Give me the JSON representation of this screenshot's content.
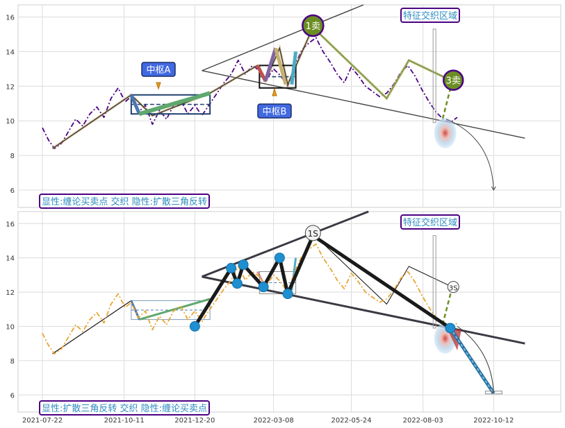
{
  "chart_data": [
    {
      "type": "line",
      "panel": "top",
      "ylim": [
        5,
        16.7
      ],
      "yticks": [
        6,
        8,
        10,
        12,
        14,
        16
      ],
      "x_range": [
        "2021-07-22",
        "2022-11-20"
      ],
      "grid": true,
      "legend": "bottom-left",
      "caption": "显性:缠论买卖点 交织 隐性:扩散三角反转",
      "region_label": "特征交织区域",
      "price_color": "#4b0082",
      "pivot_labels": [
        "中枢A",
        "中枢B"
      ],
      "signal_labels": [
        "1卖",
        "3卖"
      ],
      "bi_line": [
        [
          "2021-08-01",
          8.4
        ],
        [
          "2021-10-18",
          11.5
        ],
        [
          "2021-11-08",
          10.3
        ],
        [
          "2022-01-04",
          11.6
        ],
        [
          "2022-02-20",
          13.2
        ],
        [
          "2022-02-28",
          12.3
        ],
        [
          "2022-03-14",
          14.2
        ],
        [
          "2022-03-22",
          12.1
        ],
        [
          "2022-04-16",
          15.4
        ],
        [
          "2022-06-28",
          11.3
        ],
        [
          "2022-07-20",
          13.5
        ],
        [
          "2022-09-01",
          12.3
        ]
      ],
      "price": [
        [
          "2021-07-22",
          9.6
        ],
        [
          "2021-07-28",
          8.9
        ],
        [
          "2021-08-03",
          8.4
        ],
        [
          "2021-08-10",
          8.7
        ],
        [
          "2021-08-17",
          9.4
        ],
        [
          "2021-08-24",
          10.1
        ],
        [
          "2021-08-31",
          9.7
        ],
        [
          "2021-09-07",
          10.4
        ],
        [
          "2021-09-14",
          10.8
        ],
        [
          "2021-09-21",
          10.2
        ],
        [
          "2021-09-28",
          11.3
        ],
        [
          "2021-10-05",
          11.9
        ],
        [
          "2021-10-12",
          11.1
        ],
        [
          "2021-10-18",
          11.4
        ],
        [
          "2021-10-25",
          10.5
        ],
        [
          "2021-11-01",
          10.9
        ],
        [
          "2021-11-08",
          9.8
        ],
        [
          "2021-11-15",
          10.6
        ],
        [
          "2021-11-22",
          10.1
        ],
        [
          "2021-11-29",
          10.9
        ],
        [
          "2021-12-06",
          11.2
        ],
        [
          "2021-12-13",
          10.4
        ],
        [
          "2021-12-20",
          10.9
        ],
        [
          "2021-12-27",
          10.3
        ],
        [
          "2022-01-04",
          11.0
        ],
        [
          "2022-01-11",
          11.6
        ],
        [
          "2022-01-18",
          12.2
        ],
        [
          "2022-01-25",
          12.7
        ],
        [
          "2022-02-01",
          13.5
        ],
        [
          "2022-02-08",
          12.7
        ],
        [
          "2022-02-15",
          13.2
        ],
        [
          "2022-02-22",
          12.9
        ],
        [
          "2022-03-01",
          12.4
        ],
        [
          "2022-03-08",
          13.0
        ],
        [
          "2022-03-15",
          12.6
        ],
        [
          "2022-03-22",
          12.0
        ],
        [
          "2022-03-29",
          13.2
        ],
        [
          "2022-04-05",
          14.1
        ],
        [
          "2022-04-12",
          14.5
        ],
        [
          "2022-04-19",
          14.8
        ],
        [
          "2022-04-26",
          14.0
        ],
        [
          "2022-05-03",
          13.4
        ],
        [
          "2022-05-10",
          12.7
        ],
        [
          "2022-05-17",
          12.2
        ],
        [
          "2022-05-24",
          13.1
        ],
        [
          "2022-05-31",
          12.6
        ],
        [
          "2022-06-07",
          12.0
        ],
        [
          "2022-06-14",
          11.7
        ],
        [
          "2022-06-21",
          11.4
        ],
        [
          "2022-06-28",
          11.6
        ],
        [
          "2022-07-05",
          12.1
        ],
        [
          "2022-07-12",
          12.8
        ],
        [
          "2022-07-19",
          13.2
        ],
        [
          "2022-07-26",
          12.6
        ],
        [
          "2022-08-02",
          11.8
        ],
        [
          "2022-08-09",
          11.1
        ],
        [
          "2022-08-16",
          10.5
        ],
        [
          "2022-08-23",
          10.1
        ],
        [
          "2022-08-30",
          9.9
        ],
        [
          "2022-09-06",
          10.2
        ]
      ]
    },
    {
      "type": "line",
      "panel": "bottom",
      "ylim": [
        5,
        16.7
      ],
      "yticks": [
        6,
        8,
        10,
        12,
        14,
        16
      ],
      "xticks": [
        "2021-07-22",
        "2021-10-11",
        "2021-12-20",
        "2022-03-08",
        "2022-05-24",
        "2022-08-03",
        "2022-10-12"
      ],
      "x_range": [
        "2021-07-22",
        "2022-11-20"
      ],
      "grid": true,
      "legend": "bottom-left",
      "caption": "显性:扩散三角反转 交织 隐性:缠论买卖点",
      "region_label": "特征交织区域",
      "price_color": "#e8a530",
      "signal_labels": [
        "1S",
        "3S"
      ],
      "zigzag": [
        [
          "2021-12-20",
          10.0
        ],
        [
          "2022-01-25",
          13.4
        ],
        [
          "2022-01-31",
          12.5
        ],
        [
          "2022-02-06",
          13.6
        ],
        [
          "2022-02-26",
          12.3
        ],
        [
          "2022-03-14",
          14.0
        ],
        [
          "2022-03-22",
          11.9
        ],
        [
          "2022-04-16",
          15.3
        ],
        [
          "2022-08-30",
          9.9
        ]
      ],
      "projection": [
        [
          "2022-08-30",
          9.9
        ],
        [
          "2022-10-12",
          6.1
        ]
      ],
      "price": [
        [
          "2021-07-22",
          9.6
        ],
        [
          "2021-07-28",
          8.9
        ],
        [
          "2021-08-03",
          8.4
        ],
        [
          "2021-08-10",
          8.7
        ],
        [
          "2021-08-17",
          9.4
        ],
        [
          "2021-08-24",
          10.1
        ],
        [
          "2021-08-31",
          9.7
        ],
        [
          "2021-09-07",
          10.4
        ],
        [
          "2021-09-14",
          10.8
        ],
        [
          "2021-09-21",
          10.2
        ],
        [
          "2021-09-28",
          11.3
        ],
        [
          "2021-10-05",
          11.9
        ],
        [
          "2021-10-12",
          11.1
        ],
        [
          "2021-10-18",
          11.4
        ],
        [
          "2021-10-25",
          10.5
        ],
        [
          "2021-11-01",
          10.9
        ],
        [
          "2021-11-08",
          9.8
        ],
        [
          "2021-11-15",
          10.6
        ],
        [
          "2021-11-22",
          10.1
        ],
        [
          "2021-11-29",
          10.9
        ],
        [
          "2021-12-06",
          11.2
        ],
        [
          "2021-12-13",
          10.4
        ],
        [
          "2021-12-20",
          10.9
        ],
        [
          "2021-12-27",
          10.3
        ],
        [
          "2022-01-04",
          11.0
        ],
        [
          "2022-01-11",
          11.6
        ],
        [
          "2022-01-18",
          12.2
        ],
        [
          "2022-01-25",
          12.7
        ],
        [
          "2022-02-01",
          13.5
        ],
        [
          "2022-02-08",
          12.7
        ],
        [
          "2022-02-15",
          13.2
        ],
        [
          "2022-02-22",
          12.9
        ],
        [
          "2022-03-01",
          12.4
        ],
        [
          "2022-03-08",
          13.0
        ],
        [
          "2022-03-15",
          12.6
        ],
        [
          "2022-03-22",
          12.0
        ],
        [
          "2022-03-29",
          13.2
        ],
        [
          "2022-04-05",
          14.1
        ],
        [
          "2022-04-12",
          14.5
        ],
        [
          "2022-04-19",
          14.8
        ],
        [
          "2022-04-26",
          14.0
        ],
        [
          "2022-05-03",
          13.4
        ],
        [
          "2022-05-10",
          12.7
        ],
        [
          "2022-05-17",
          12.2
        ],
        [
          "2022-05-24",
          13.1
        ],
        [
          "2022-05-31",
          12.6
        ],
        [
          "2022-06-07",
          12.0
        ],
        [
          "2022-06-14",
          11.7
        ],
        [
          "2022-06-21",
          11.4
        ],
        [
          "2022-06-28",
          11.6
        ],
        [
          "2022-07-05",
          12.1
        ],
        [
          "2022-07-12",
          12.8
        ],
        [
          "2022-07-19",
          13.2
        ],
        [
          "2022-07-26",
          12.6
        ],
        [
          "2022-08-02",
          11.8
        ],
        [
          "2022-08-09",
          11.1
        ],
        [
          "2022-08-16",
          10.5
        ],
        [
          "2022-08-23",
          10.1
        ],
        [
          "2022-08-30",
          9.9
        ],
        [
          "2022-09-06",
          10.2
        ]
      ]
    }
  ]
}
